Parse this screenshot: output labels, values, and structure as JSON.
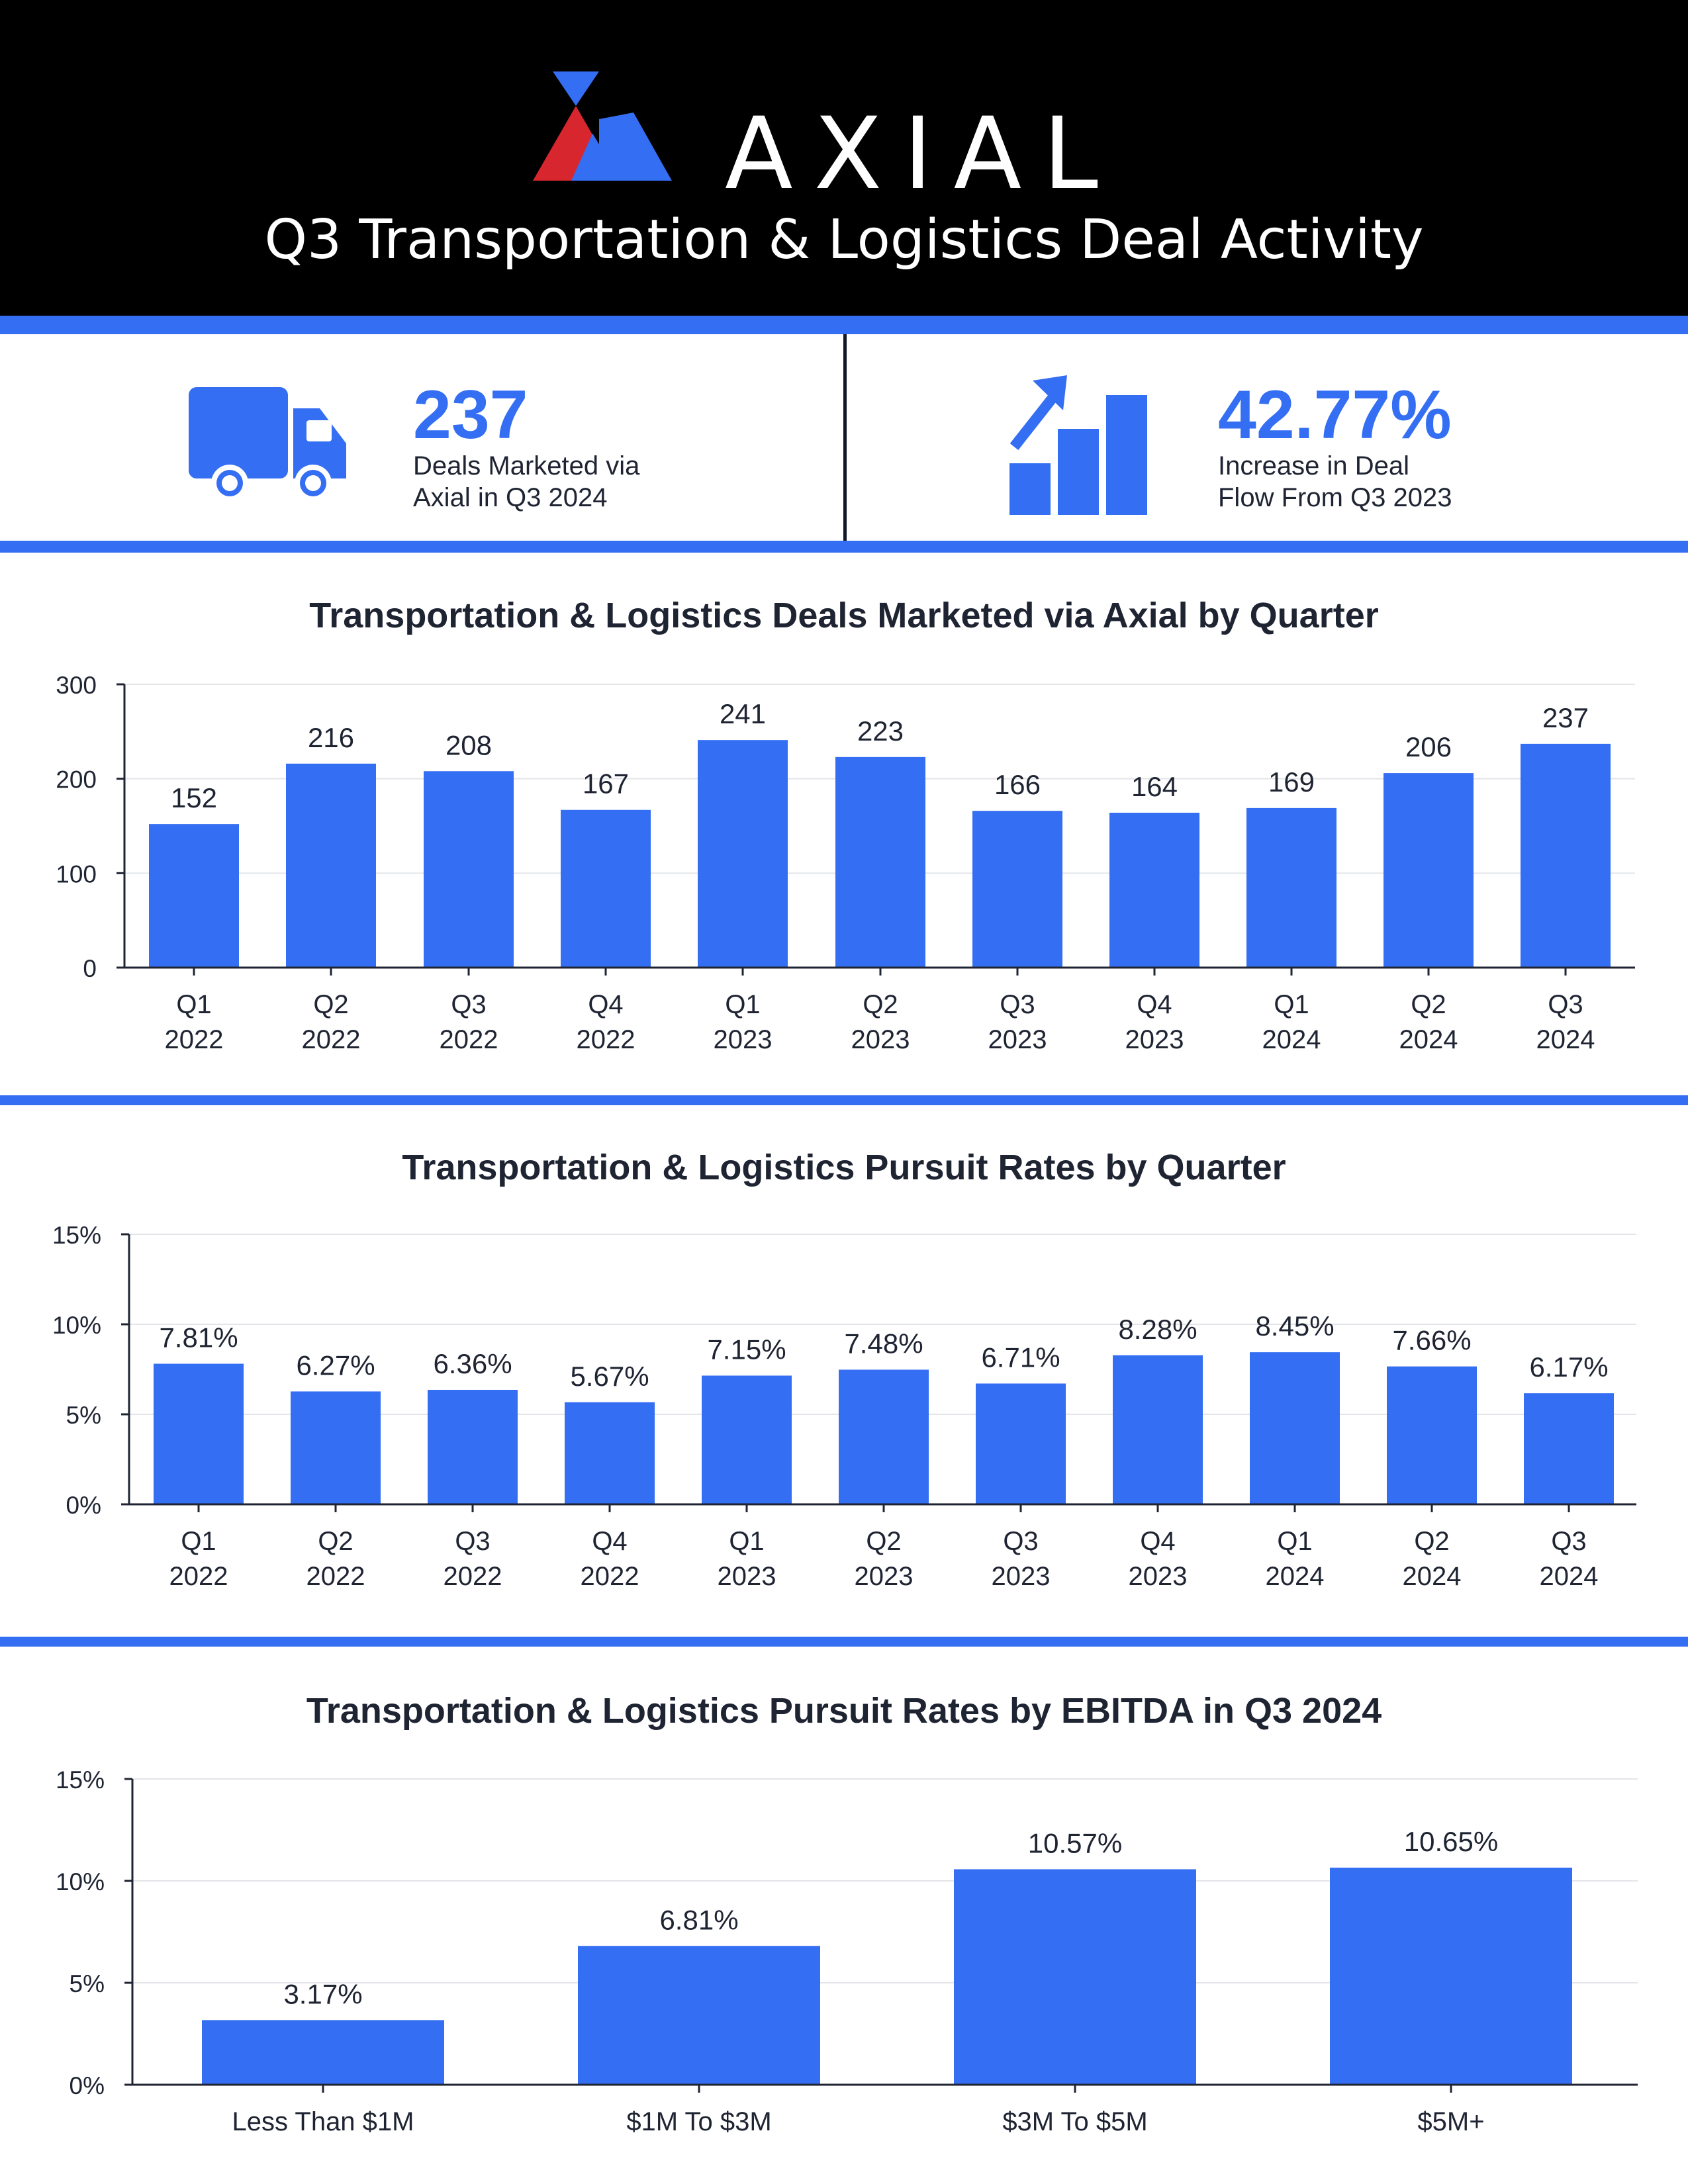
{
  "header": {
    "brand": "AXIAL",
    "title": "Q3 Transportation & Logistics Deal Activity"
  },
  "colors": {
    "accent": "#346ef2",
    "header_bg": "#000000",
    "logo_red": "#d7262d",
    "text_dark": "#1f2433"
  },
  "kpis": [
    {
      "icon": "truck-icon",
      "value": "237",
      "sub1": "Deals Marketed via",
      "sub2": "Axial in Q3 2024"
    },
    {
      "icon": "growth-bar-chart-icon",
      "value": "42.77%",
      "sub1": "Increase in Deal",
      "sub2": "Flow From Q3 2023"
    }
  ],
  "chart_data": [
    {
      "type": "bar",
      "title": "Transportation & Logistics Deals Marketed via Axial by Quarter",
      "categories": [
        [
          "Q1",
          "2022"
        ],
        [
          "Q2",
          "2022"
        ],
        [
          "Q3",
          "2022"
        ],
        [
          "Q4",
          "2022"
        ],
        [
          "Q1",
          "2023"
        ],
        [
          "Q2",
          "2023"
        ],
        [
          "Q3",
          "2023"
        ],
        [
          "Q4",
          "2023"
        ],
        [
          "Q1",
          "2024"
        ],
        [
          "Q2",
          "2024"
        ],
        [
          "Q3",
          "2024"
        ]
      ],
      "values": [
        152,
        216,
        208,
        167,
        241,
        223,
        166,
        164,
        169,
        206,
        237
      ],
      "labels": [
        "152",
        "216",
        "208",
        "167",
        "241",
        "223",
        "166",
        "164",
        "169",
        "206",
        "237"
      ],
      "ylim": [
        0,
        300
      ],
      "yticks": [
        "0",
        "100",
        "200",
        "300"
      ],
      "grid": true
    },
    {
      "type": "bar",
      "title": "Transportation & Logistics Pursuit Rates by Quarter",
      "categories": [
        [
          "Q1",
          "2022"
        ],
        [
          "Q2",
          "2022"
        ],
        [
          "Q3",
          "2022"
        ],
        [
          "Q4",
          "2022"
        ],
        [
          "Q1",
          "2023"
        ],
        [
          "Q2",
          "2023"
        ],
        [
          "Q3",
          "2023"
        ],
        [
          "Q4",
          "2023"
        ],
        [
          "Q1",
          "2024"
        ],
        [
          "Q2",
          "2024"
        ],
        [
          "Q3",
          "2024"
        ]
      ],
      "values": [
        7.81,
        6.27,
        6.36,
        5.67,
        7.15,
        7.48,
        6.71,
        8.28,
        8.45,
        7.66,
        6.17
      ],
      "labels": [
        "7.81%",
        "6.27%",
        "6.36%",
        "5.67%",
        "7.15%",
        "7.48%",
        "6.71%",
        "8.28%",
        "8.45%",
        "7.66%",
        "6.17%"
      ],
      "ylim": [
        0,
        15
      ],
      "yticks": [
        "0%",
        "5%",
        "10%",
        "15%"
      ],
      "grid": true
    },
    {
      "type": "bar",
      "title": "Transportation & Logistics Pursuit Rates by EBITDA in Q3 2024",
      "categories": [
        [
          "Less Than $1M"
        ],
        [
          "$1M To $3M"
        ],
        [
          "$3M To $5M"
        ],
        [
          "$5M+"
        ]
      ],
      "values": [
        3.17,
        6.81,
        10.57,
        10.65
      ],
      "labels": [
        "3.17%",
        "6.81%",
        "10.57%",
        "10.65%"
      ],
      "ylim": [
        0,
        15
      ],
      "yticks": [
        "0%",
        "5%",
        "10%",
        "15%"
      ],
      "grid": true
    }
  ]
}
